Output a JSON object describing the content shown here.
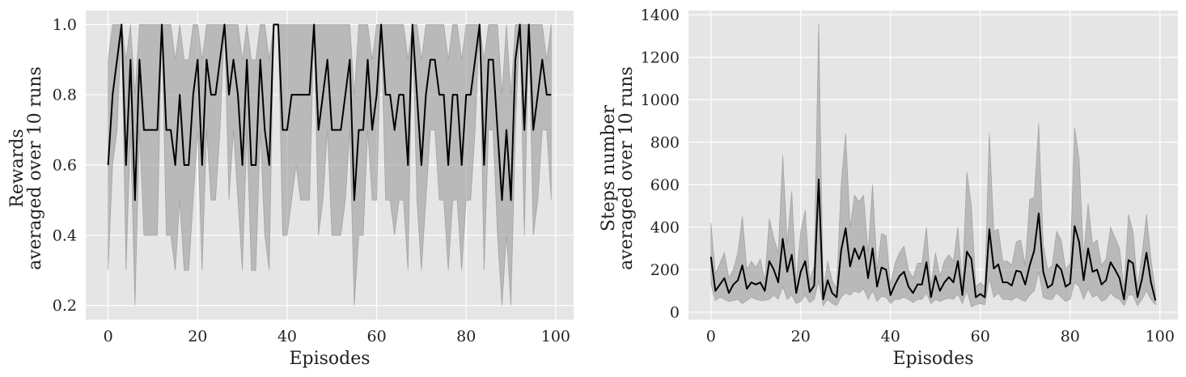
{
  "chart_data": [
    {
      "type": "line",
      "title": "",
      "xlabel": "Episodes",
      "ylabel_lines": [
        "Rewards",
        "averaged over 10 runs"
      ],
      "xlim": [
        -5,
        104
      ],
      "ylim": [
        0.16,
        1.04
      ],
      "xticks": [
        0,
        20,
        40,
        60,
        80,
        100
      ],
      "yticks": [
        0.2,
        0.4,
        0.6,
        0.8,
        1.0
      ],
      "xtick_labels": [
        "0",
        "20",
        "40",
        "60",
        "80",
        "100"
      ],
      "ytick_labels": [
        "0.2",
        "0.4",
        "0.6",
        "0.8",
        "1.0"
      ],
      "grid": true,
      "series": [
        {
          "x": [
            0,
            1,
            2,
            3,
            4,
            5,
            6,
            7,
            8,
            9,
            10,
            11,
            12,
            13,
            14,
            15,
            16,
            17,
            18,
            19,
            20,
            21,
            22,
            23,
            24,
            25,
            26,
            27,
            28,
            29,
            30,
            31,
            32,
            33,
            34,
            35,
            36,
            37,
            38,
            39,
            40,
            41,
            42,
            43,
            44,
            45,
            46,
            47,
            48,
            49,
            50,
            51,
            52,
            53,
            54,
            55,
            56,
            57,
            58,
            59,
            60,
            61,
            62,
            63,
            64,
            65,
            66,
            67,
            68,
            69,
            70,
            71,
            72,
            73,
            74,
            75,
            76,
            77,
            78,
            79,
            80,
            81,
            82,
            83,
            84,
            85,
            86,
            87,
            88,
            89,
            90,
            91,
            92,
            93,
            94,
            95,
            96,
            97,
            98,
            99
          ],
          "mean": [
            0.6,
            0.8,
            0.9,
            1.0,
            0.6,
            0.9,
            0.5,
            0.9,
            0.7,
            0.7,
            0.7,
            0.7,
            1.0,
            0.7,
            0.7,
            0.6,
            0.8,
            0.6,
            0.6,
            0.8,
            0.9,
            0.6,
            0.9,
            0.8,
            0.8,
            0.9,
            1.0,
            0.8,
            0.9,
            0.8,
            0.6,
            0.9,
            0.6,
            0.6,
            0.9,
            0.7,
            0.6,
            1.0,
            1.0,
            0.7,
            0.7,
            0.8,
            0.8,
            0.8,
            0.8,
            0.8,
            1.0,
            0.7,
            0.8,
            0.9,
            0.7,
            0.7,
            0.7,
            0.8,
            0.9,
            0.5,
            0.7,
            0.7,
            0.9,
            0.7,
            0.8,
            1.0,
            0.8,
            0.8,
            0.7,
            0.8,
            0.8,
            0.6,
            1.0,
            0.8,
            0.6,
            0.8,
            0.9,
            0.9,
            0.8,
            0.8,
            0.6,
            0.8,
            0.8,
            0.6,
            0.8,
            0.8,
            0.9,
            1.0,
            0.6,
            0.9,
            0.9,
            0.7,
            0.5,
            0.7,
            0.5,
            0.9,
            1.0,
            0.7,
            1.0,
            0.7,
            0.8,
            0.9,
            0.8,
            0.8
          ],
          "lower": [
            0.3,
            0.6,
            0.7,
            1.0,
            0.3,
            0.7,
            0.2,
            0.7,
            0.4,
            0.4,
            0.4,
            0.4,
            1.0,
            0.4,
            0.4,
            0.3,
            0.5,
            0.3,
            0.3,
            0.5,
            0.7,
            0.3,
            0.7,
            0.5,
            0.5,
            0.7,
            1.0,
            0.5,
            0.7,
            0.5,
            0.3,
            0.7,
            0.3,
            0.3,
            0.7,
            0.4,
            0.3,
            1.0,
            1.0,
            0.4,
            0.4,
            0.5,
            0.6,
            0.5,
            0.5,
            0.5,
            1.0,
            0.4,
            0.5,
            0.7,
            0.4,
            0.4,
            0.4,
            0.5,
            0.7,
            0.2,
            0.4,
            0.4,
            0.7,
            0.5,
            0.5,
            1.0,
            0.5,
            0.5,
            0.4,
            0.5,
            0.5,
            0.3,
            1.0,
            0.5,
            0.3,
            0.5,
            0.7,
            0.7,
            0.5,
            0.5,
            0.3,
            0.5,
            0.5,
            0.3,
            0.5,
            0.5,
            0.7,
            1.0,
            0.3,
            0.7,
            0.7,
            0.4,
            0.2,
            0.4,
            0.2,
            0.7,
            1.0,
            0.4,
            1.0,
            0.4,
            0.5,
            0.7,
            0.7,
            0.5
          ],
          "upper": [
            0.9,
            1.0,
            1.0,
            1.0,
            0.9,
            1.0,
            0.8,
            1.0,
            1.0,
            1.0,
            1.0,
            1.0,
            1.0,
            1.0,
            1.0,
            0.9,
            1.0,
            0.9,
            0.9,
            1.0,
            1.0,
            0.9,
            1.0,
            1.0,
            1.0,
            1.0,
            1.0,
            1.0,
            1.0,
            1.0,
            0.9,
            1.0,
            0.9,
            0.9,
            1.0,
            1.0,
            0.9,
            1.0,
            1.0,
            1.0,
            1.0,
            1.0,
            1.0,
            1.0,
            1.0,
            1.0,
            1.0,
            1.0,
            1.0,
            1.0,
            1.0,
            1.0,
            1.0,
            1.0,
            1.0,
            0.8,
            1.0,
            1.0,
            1.0,
            0.9,
            1.0,
            1.0,
            1.0,
            1.0,
            1.0,
            1.0,
            1.0,
            0.9,
            1.0,
            1.0,
            0.9,
            1.0,
            1.0,
            1.0,
            1.0,
            1.0,
            0.9,
            1.0,
            1.0,
            0.9,
            1.0,
            1.0,
            1.0,
            1.0,
            0.9,
            1.0,
            1.0,
            1.0,
            0.8,
            1.0,
            0.8,
            1.0,
            1.0,
            1.0,
            1.0,
            1.0,
            1.0,
            1.0,
            0.9,
            1.0
          ]
        }
      ]
    },
    {
      "type": "line",
      "title": "",
      "xlabel": "Episodes",
      "ylabel_lines": [
        "Steps number",
        "averaged over 10 runs"
      ],
      "xlim": [
        -5,
        104
      ],
      "ylim": [
        -35,
        1420
      ],
      "xticks": [
        0,
        20,
        40,
        60,
        80,
        100
      ],
      "yticks": [
        0,
        200,
        400,
        600,
        800,
        1000,
        1200,
        1400
      ],
      "xtick_labels": [
        "0",
        "20",
        "40",
        "60",
        "80",
        "100"
      ],
      "ytick_labels": [
        "0",
        "200",
        "400",
        "600",
        "800",
        "1000",
        "1200",
        "1400"
      ],
      "grid": true,
      "series": [
        {
          "x": [
            0,
            1,
            2,
            3,
            4,
            5,
            6,
            7,
            8,
            9,
            10,
            11,
            12,
            13,
            14,
            15,
            16,
            17,
            18,
            19,
            20,
            21,
            22,
            23,
            24,
            25,
            26,
            27,
            28,
            29,
            30,
            31,
            32,
            33,
            34,
            35,
            36,
            37,
            38,
            39,
            40,
            41,
            42,
            43,
            44,
            45,
            46,
            47,
            48,
            49,
            50,
            51,
            52,
            53,
            54,
            55,
            56,
            57,
            58,
            59,
            60,
            61,
            62,
            63,
            64,
            65,
            66,
            67,
            68,
            69,
            70,
            71,
            72,
            73,
            74,
            75,
            76,
            77,
            78,
            79,
            80,
            81,
            82,
            83,
            84,
            85,
            86,
            87,
            88,
            89,
            90,
            91,
            92,
            93,
            94,
            95,
            96,
            97,
            98,
            99
          ],
          "mean": [
            260,
            100,
            130,
            160,
            90,
            130,
            150,
            220,
            110,
            140,
            130,
            140,
            100,
            240,
            200,
            140,
            345,
            190,
            270,
            90,
            190,
            240,
            95,
            125,
            625,
            60,
            150,
            90,
            70,
            290,
            395,
            215,
            300,
            250,
            310,
            160,
            300,
            120,
            210,
            200,
            80,
            130,
            170,
            190,
            120,
            90,
            130,
            130,
            235,
            70,
            170,
            100,
            140,
            165,
            140,
            240,
            80,
            285,
            250,
            70,
            85,
            70,
            390,
            205,
            225,
            140,
            140,
            125,
            195,
            190,
            130,
            220,
            290,
            465,
            190,
            115,
            130,
            225,
            200,
            120,
            135,
            405,
            330,
            150,
            300,
            190,
            200,
            130,
            150,
            235,
            200,
            160,
            60,
            245,
            230,
            70,
            155,
            280,
            140,
            55
          ],
          "lower": [
            130,
            55,
            70,
            60,
            50,
            55,
            60,
            40,
            55,
            70,
            60,
            55,
            55,
            60,
            80,
            60,
            120,
            60,
            80,
            40,
            50,
            80,
            45,
            60,
            145,
            30,
            60,
            40,
            30,
            70,
            90,
            80,
            100,
            90,
            110,
            60,
            100,
            50,
            75,
            70,
            40,
            60,
            60,
            70,
            60,
            45,
            60,
            60,
            90,
            40,
            60,
            50,
            60,
            65,
            60,
            85,
            40,
            100,
            25,
            35,
            40,
            35,
            160,
            70,
            90,
            60,
            60,
            55,
            70,
            60,
            50,
            80,
            100,
            190,
            70,
            60,
            60,
            90,
            70,
            50,
            60,
            140,
            120,
            60,
            110,
            70,
            80,
            50,
            60,
            90,
            70,
            60,
            30,
            80,
            80,
            30,
            60,
            100,
            60,
            35
          ],
          "upper": [
            420,
            180,
            230,
            280,
            160,
            200,
            280,
            450,
            200,
            240,
            210,
            250,
            150,
            440,
            350,
            280,
            740,
            320,
            570,
            140,
            380,
            480,
            150,
            220,
            1360,
            100,
            240,
            150,
            110,
            600,
            840,
            400,
            550,
            520,
            550,
            280,
            600,
            200,
            370,
            360,
            130,
            230,
            280,
            310,
            200,
            160,
            230,
            230,
            400,
            120,
            280,
            170,
            240,
            270,
            240,
            400,
            130,
            660,
            500,
            120,
            140,
            120,
            845,
            380,
            390,
            240,
            240,
            220,
            330,
            340,
            220,
            530,
            540,
            890,
            320,
            200,
            220,
            380,
            340,
            200,
            230,
            870,
            720,
            260,
            510,
            320,
            340,
            220,
            250,
            400,
            350,
            300,
            110,
            460,
            380,
            120,
            270,
            460,
            250,
            100
          ]
        }
      ]
    }
  ]
}
